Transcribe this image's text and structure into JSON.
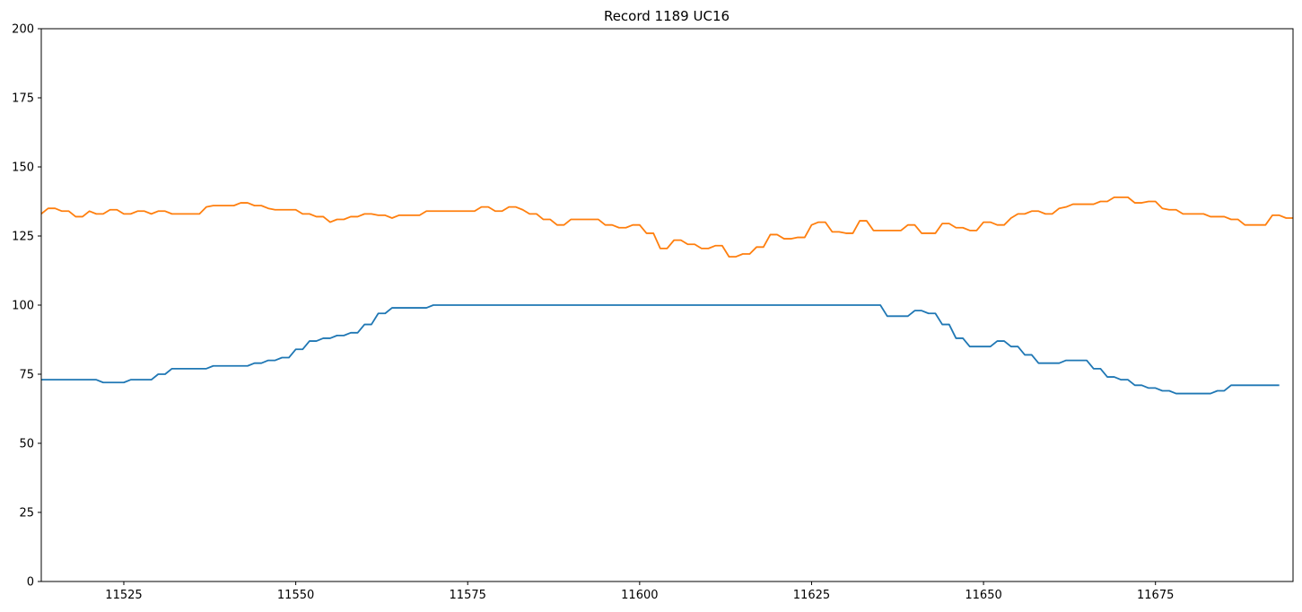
{
  "chart_data": {
    "type": "line",
    "title": "Record 1189 UC16",
    "xlabel": "",
    "ylabel": "",
    "xlim": [
      11513,
      11695
    ],
    "ylim": [
      0,
      200
    ],
    "xticks": [
      11525,
      11550,
      11575,
      11600,
      11625,
      11650,
      11675
    ],
    "yticks": [
      0,
      25,
      50,
      75,
      100,
      125,
      150,
      175,
      200
    ],
    "grid": false,
    "legend": "none",
    "series": [
      {
        "color": "#1f77b4",
        "points": [
          [
            11513,
            73
          ],
          [
            11521,
            73
          ],
          [
            11522,
            72
          ],
          [
            11525,
            72
          ],
          [
            11526,
            73
          ],
          [
            11529,
            73
          ],
          [
            11530,
            75
          ],
          [
            11531,
            75
          ],
          [
            11532,
            77
          ],
          [
            11537,
            77
          ],
          [
            11538,
            78
          ],
          [
            11543,
            78
          ],
          [
            11544,
            79
          ],
          [
            11545,
            79
          ],
          [
            11546,
            80
          ],
          [
            11547,
            80
          ],
          [
            11548,
            81
          ],
          [
            11549,
            81
          ],
          [
            11550,
            84
          ],
          [
            11551,
            84
          ],
          [
            11552,
            87
          ],
          [
            11553,
            87
          ],
          [
            11554,
            88
          ],
          [
            11555,
            88
          ],
          [
            11556,
            89
          ],
          [
            11557,
            89
          ],
          [
            11558,
            90
          ],
          [
            11559,
            90
          ],
          [
            11560,
            93
          ],
          [
            11561,
            93
          ],
          [
            11562,
            97
          ],
          [
            11563,
            97
          ],
          [
            11564,
            99
          ],
          [
            11569,
            99
          ],
          [
            11570,
            100
          ],
          [
            11635,
            100
          ],
          [
            11636,
            96
          ],
          [
            11639,
            96
          ],
          [
            11640,
            98
          ],
          [
            11641,
            98
          ],
          [
            11642,
            97
          ],
          [
            11643,
            97
          ],
          [
            11644,
            93
          ],
          [
            11645,
            93
          ],
          [
            11646,
            88
          ],
          [
            11647,
            88
          ],
          [
            11648,
            85
          ],
          [
            11651,
            85
          ],
          [
            11652,
            87
          ],
          [
            11653,
            87
          ],
          [
            11654,
            85
          ],
          [
            11655,
            85
          ],
          [
            11656,
            82
          ],
          [
            11657,
            82
          ],
          [
            11658,
            79
          ],
          [
            11661,
            79
          ],
          [
            11662,
            80
          ],
          [
            11665,
            80
          ],
          [
            11666,
            77
          ],
          [
            11667,
            77
          ],
          [
            11668,
            74
          ],
          [
            11669,
            74
          ],
          [
            11670,
            73
          ],
          [
            11671,
            73
          ],
          [
            11672,
            71
          ],
          [
            11673,
            71
          ],
          [
            11674,
            70
          ],
          [
            11675,
            70
          ],
          [
            11676,
            69
          ],
          [
            11677,
            69
          ],
          [
            11678,
            68
          ],
          [
            11683,
            68
          ],
          [
            11684,
            69
          ],
          [
            11685,
            69
          ],
          [
            11686,
            71
          ],
          [
            11693,
            71
          ]
        ]
      },
      {
        "color": "#ff7f0e",
        "points": [
          [
            11513,
            133
          ],
          [
            11514,
            135
          ],
          [
            11515,
            135
          ],
          [
            11516,
            134
          ],
          [
            11517,
            134
          ],
          [
            11518,
            132
          ],
          [
            11519,
            132
          ],
          [
            11520,
            134
          ],
          [
            11521,
            133
          ],
          [
            11522,
            133
          ],
          [
            11523,
            134.5
          ],
          [
            11524,
            134.5
          ],
          [
            11525,
            133
          ],
          [
            11526,
            133
          ],
          [
            11527,
            134
          ],
          [
            11528,
            134
          ],
          [
            11529,
            133
          ],
          [
            11530,
            134
          ],
          [
            11531,
            134
          ],
          [
            11532,
            133
          ],
          [
            11536,
            133
          ],
          [
            11537,
            135.5
          ],
          [
            11538,
            136
          ],
          [
            11541,
            136
          ],
          [
            11542,
            137
          ],
          [
            11543,
            137
          ],
          [
            11544,
            136
          ],
          [
            11545,
            136
          ],
          [
            11546,
            135
          ],
          [
            11547,
            134.5
          ],
          [
            11550,
            134.5
          ],
          [
            11551,
            133
          ],
          [
            11552,
            133
          ],
          [
            11553,
            132
          ],
          [
            11554,
            132
          ],
          [
            11555,
            130
          ],
          [
            11556,
            131
          ],
          [
            11557,
            131
          ],
          [
            11558,
            132
          ],
          [
            11559,
            132
          ],
          [
            11560,
            133
          ],
          [
            11561,
            133
          ],
          [
            11562,
            132.5
          ],
          [
            11563,
            132.5
          ],
          [
            11564,
            131.5
          ],
          [
            11565,
            132.5
          ],
          [
            11568,
            132.5
          ],
          [
            11569,
            134
          ],
          [
            11576,
            134
          ],
          [
            11577,
            135.5
          ],
          [
            11578,
            135.5
          ],
          [
            11579,
            134
          ],
          [
            11580,
            134
          ],
          [
            11581,
            135.5
          ],
          [
            11582,
            135.5
          ],
          [
            11583,
            134.5
          ],
          [
            11584,
            133
          ],
          [
            11585,
            133
          ],
          [
            11586,
            131
          ],
          [
            11587,
            131
          ],
          [
            11588,
            129
          ],
          [
            11589,
            129
          ],
          [
            11590,
            131
          ],
          [
            11594,
            131
          ],
          [
            11595,
            129
          ],
          [
            11596,
            129
          ],
          [
            11597,
            128
          ],
          [
            11598,
            128
          ],
          [
            11599,
            129
          ],
          [
            11600,
            129
          ],
          [
            11601,
            126
          ],
          [
            11602,
            126
          ],
          [
            11603,
            120.5
          ],
          [
            11604,
            120.5
          ],
          [
            11605,
            123.5
          ],
          [
            11606,
            123.5
          ],
          [
            11607,
            122
          ],
          [
            11608,
            122
          ],
          [
            11609,
            120.5
          ],
          [
            11610,
            120.5
          ],
          [
            11611,
            121.5
          ],
          [
            11612,
            121.5
          ],
          [
            11613,
            117.5
          ],
          [
            11614,
            117.5
          ],
          [
            11615,
            118.5
          ],
          [
            11616,
            118.5
          ],
          [
            11617,
            121
          ],
          [
            11618,
            121
          ],
          [
            11619,
            125.5
          ],
          [
            11620,
            125.5
          ],
          [
            11621,
            124
          ],
          [
            11622,
            124
          ],
          [
            11623,
            124.5
          ],
          [
            11624,
            124.5
          ],
          [
            11625,
            129
          ],
          [
            11626,
            130
          ],
          [
            11627,
            130
          ],
          [
            11628,
            126.5
          ],
          [
            11629,
            126.5
          ],
          [
            11630,
            126
          ],
          [
            11631,
            126
          ],
          [
            11632,
            130.5
          ],
          [
            11633,
            130.5
          ],
          [
            11634,
            127
          ],
          [
            11638,
            127
          ],
          [
            11639,
            129
          ],
          [
            11640,
            129
          ],
          [
            11641,
            126
          ],
          [
            11643,
            126
          ],
          [
            11644,
            129.5
          ],
          [
            11645,
            129.5
          ],
          [
            11646,
            128
          ],
          [
            11647,
            128
          ],
          [
            11648,
            127
          ],
          [
            11649,
            127
          ],
          [
            11650,
            130
          ],
          [
            11651,
            130
          ],
          [
            11652,
            129
          ],
          [
            11653,
            129
          ],
          [
            11654,
            131.5
          ],
          [
            11655,
            133
          ],
          [
            11656,
            133
          ],
          [
            11657,
            134
          ],
          [
            11658,
            134
          ],
          [
            11659,
            133
          ],
          [
            11660,
            133
          ],
          [
            11661,
            135
          ],
          [
            11662,
            135.5
          ],
          [
            11663,
            136.5
          ],
          [
            11666,
            136.5
          ],
          [
            11667,
            137.5
          ],
          [
            11668,
            137.5
          ],
          [
            11669,
            139
          ],
          [
            11671,
            139
          ],
          [
            11672,
            137
          ],
          [
            11673,
            137
          ],
          [
            11674,
            137.5
          ],
          [
            11675,
            137.5
          ],
          [
            11676,
            135
          ],
          [
            11677,
            134.5
          ],
          [
            11678,
            134.5
          ],
          [
            11679,
            133
          ],
          [
            11682,
            133
          ],
          [
            11683,
            132
          ],
          [
            11685,
            132
          ],
          [
            11686,
            131
          ],
          [
            11687,
            131
          ],
          [
            11688,
            129
          ],
          [
            11691,
            129
          ],
          [
            11692,
            132.5
          ],
          [
            11693,
            132.5
          ],
          [
            11694,
            131.5
          ],
          [
            11695,
            131.5
          ]
        ]
      }
    ]
  }
}
